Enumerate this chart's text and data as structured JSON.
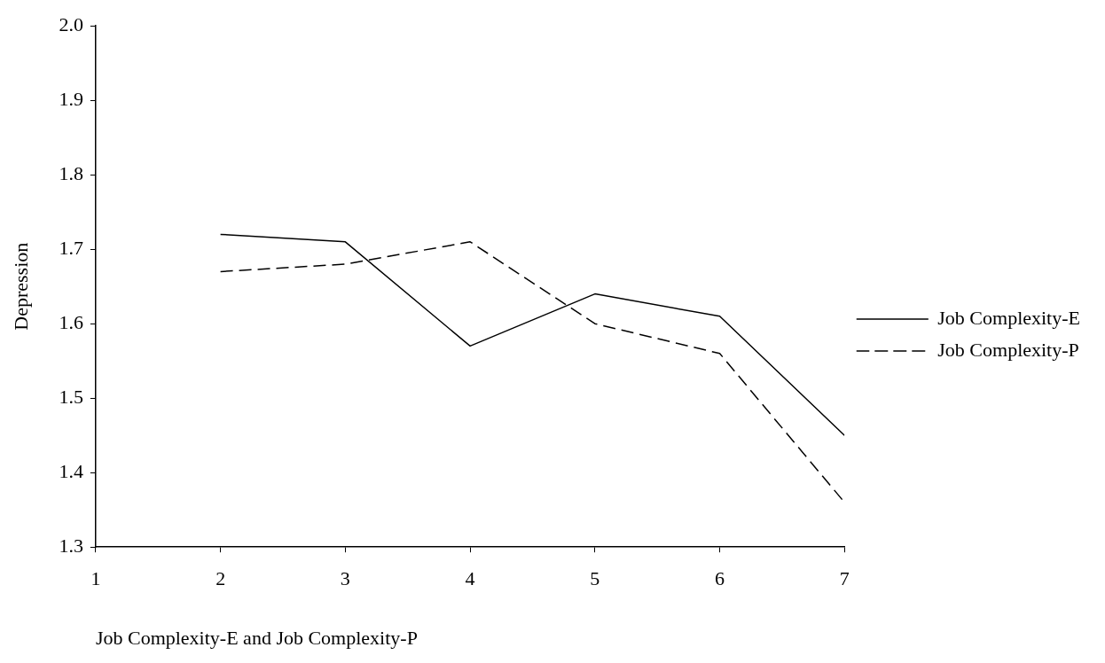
{
  "chart_data": {
    "type": "line",
    "xlabel": "Job Complexity-E and Job Complexity-P",
    "ylabel": "Depression",
    "x": [
      2,
      3,
      4,
      5,
      6,
      7
    ],
    "series": [
      {
        "name": "Job Complexity-E",
        "color": "#000000",
        "values": [
          1.72,
          1.71,
          1.57,
          1.64,
          1.61,
          1.45
        ],
        "line_style": "solid"
      },
      {
        "name": "Job Complexity-P",
        "color": "#000000",
        "values": [
          1.67,
          1.68,
          1.71,
          1.6,
          1.56,
          1.36
        ],
        "line_style": "dashed"
      }
    ],
    "xlim": [
      1,
      7
    ],
    "xticks": [
      1,
      2,
      3,
      4,
      5,
      6,
      7
    ],
    "ylim": [
      1.3,
      2.0
    ],
    "yticks": [
      1.3,
      1.4,
      1.5,
      1.6,
      1.7,
      1.8,
      1.9,
      {
        "value": 2,
        "label": "2.0"
      }
    ],
    "grid": false,
    "legend": "right",
    "marker": "none"
  }
}
